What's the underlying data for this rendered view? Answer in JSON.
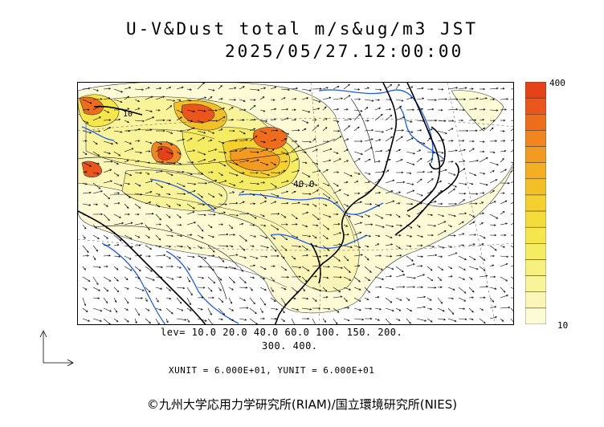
{
  "title": {
    "line1": "U-V&Dust total m/s&ug/m3 JST",
    "line2": "2025/05/27.12:00:00"
  },
  "colorbar": {
    "max_label": "400",
    "min_label": "10",
    "colors": [
      "#fdfbd6",
      "#fbf6b8",
      "#f9f39a",
      "#f7f07f",
      "#f6ec64",
      "#f5e64c",
      "#f4dd3a",
      "#f4d12e",
      "#f4c028",
      "#f3ae24",
      "#f29a21",
      "#f1851f",
      "#ee6d1d",
      "#ea561b",
      "#e54218"
    ]
  },
  "legend": {
    "levels_line1": "lev= 10.0  20.0  40.0  60.0  100.  150.  200.",
    "levels_line2": "300.  400.",
    "unit_line": "XUNIT = 6.000E+01, YUNIT = 6.000E+01"
  },
  "map_labels": {
    "contour_label": "40.0",
    "contour_label_2": "10"
  },
  "credit": "©九州大学応用力学研究所(RIAM)/国立環境研究所(NIES)"
}
